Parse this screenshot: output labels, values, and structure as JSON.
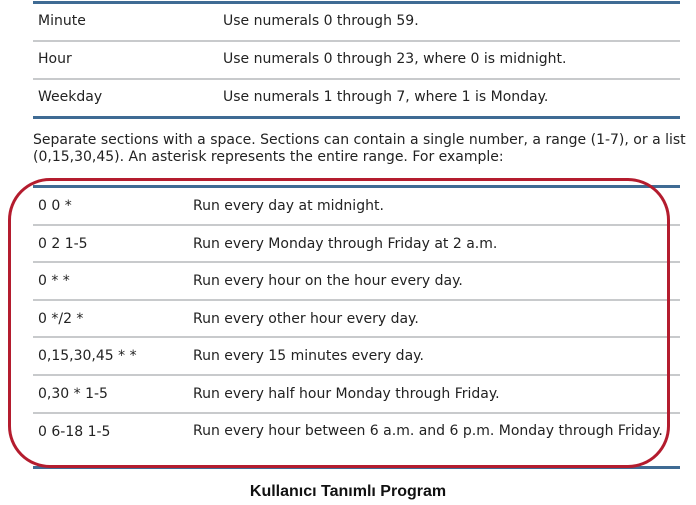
{
  "fields_table": [
    {
      "field": "Minute",
      "desc": "Use numerals 0 through 59."
    },
    {
      "field": "Hour",
      "desc": "Use numerals 0 through 23, where 0 is midnight."
    },
    {
      "field": "Weekday",
      "desc": "Use numerals 1 through 7, where 1 is Monday."
    }
  ],
  "paragraph": "Separate sections with a space. Sections can contain a single number, a range (1-7), or a list (0,15,30,45). An asterisk represents the entire range. For example:",
  "examples_table": [
    {
      "expr": "0 0 *",
      "desc": "Run every day at midnight."
    },
    {
      "expr": "0 2 1-5",
      "desc": "Run every Monday through Friday at 2 a.m."
    },
    {
      "expr": "0 * *",
      "desc": "Run every hour on the hour every day."
    },
    {
      "expr": "0 */2 *",
      "desc": "Run every other hour every day."
    },
    {
      "expr": "0,15,30,45 * *",
      "desc": "Run every 15 minutes every day."
    },
    {
      "expr": "0,30 * 1-5",
      "desc": "Run every half hour Monday through Friday."
    },
    {
      "expr": "0 6-18 1-5",
      "desc": "Run every hour between 6 a.m. and 6 p.m. Monday through Friday."
    }
  ],
  "caption": "Kullanıcı Tanımlı Program",
  "colors": {
    "rule": "#3f6b94",
    "highlight": "#b41c2e"
  }
}
